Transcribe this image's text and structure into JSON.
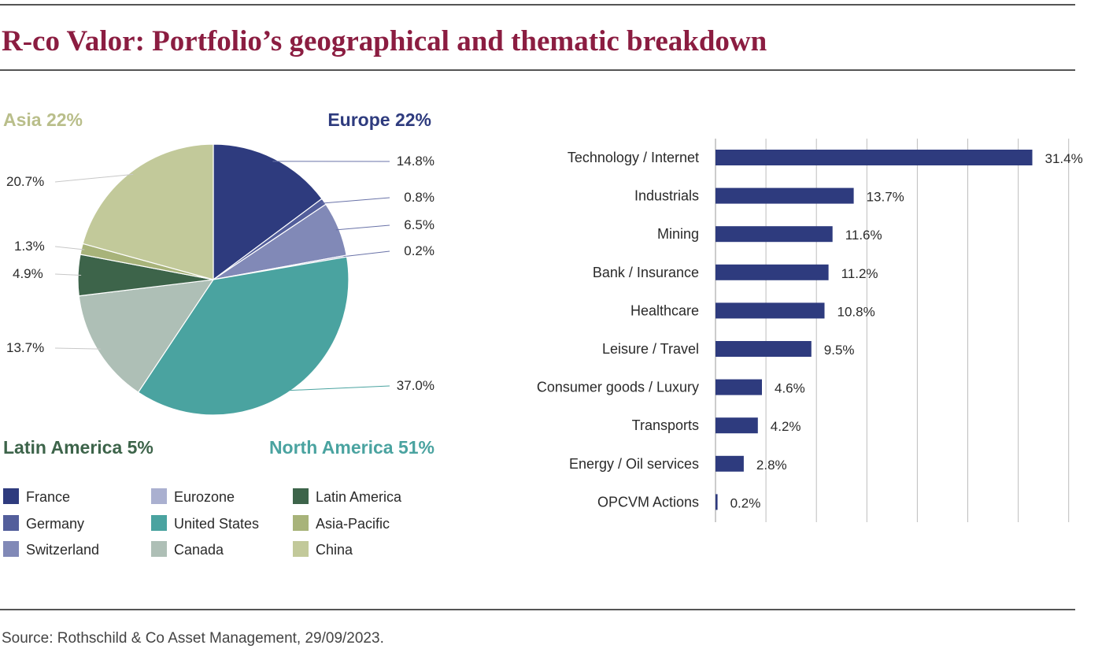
{
  "title": "R-co Valor: Portfolio’s geographical and thematic breakdown",
  "source": "Source: Rothschild & Co Asset Management, 29/09/2023.",
  "chart_data": [
    {
      "type": "pie",
      "regions": [
        {
          "label": "Asia 22%",
          "color": "#b9be8a"
        },
        {
          "label": "Europe 22%",
          "color": "#2e3b7e"
        },
        {
          "label": "Latin America 5%",
          "color": "#3d644a"
        },
        {
          "label": "North America 51%",
          "color": "#4aa3a0"
        }
      ],
      "slices": [
        {
          "name": "France",
          "value": 14.8,
          "label": "14.8%",
          "color": "#2e3b7e"
        },
        {
          "name": "Germany",
          "value": 0.8,
          "label": "0.8%",
          "color": "#535e9b"
        },
        {
          "name": "Switzerland",
          "value": 6.5,
          "label": "6.5%",
          "color": "#8189b7"
        },
        {
          "name": "Eurozone",
          "value": 0.2,
          "label": "0.2%",
          "color": "#aab0d0"
        },
        {
          "name": "United States",
          "value": 37.0,
          "label": "37.0%",
          "color": "#4aa3a0"
        },
        {
          "name": "Canada",
          "value": 13.7,
          "label": "13.7%",
          "color": "#aebfb6"
        },
        {
          "name": "Latin America",
          "value": 4.9,
          "label": "4.9%",
          "color": "#3d644a"
        },
        {
          "name": "Asia-Pacific",
          "value": 1.3,
          "label": "1.3%",
          "color": "#a8b37a"
        },
        {
          "name": "China",
          "value": 20.7,
          "label": "20.7%",
          "color": "#c2c99a"
        }
      ],
      "legend_order": [
        "France",
        "Germany",
        "Switzerland",
        "Eurozone",
        "United States",
        "Canada",
        "Latin America",
        "Asia-Pacific",
        "China"
      ]
    },
    {
      "type": "bar",
      "orientation": "horizontal",
      "categories": [
        "Technology / Internet",
        "Industrials",
        "Mining",
        "Bank / Insurance",
        "Healthcare",
        "Leisure / Travel",
        "Consumer goods / Luxury",
        "Transports",
        "Energy / Oil services",
        "OPCVM Actions"
      ],
      "values": [
        31.4,
        13.7,
        11.6,
        11.2,
        10.8,
        9.5,
        4.6,
        4.2,
        2.8,
        0.2
      ],
      "value_labels": [
        "31.4%",
        "13.7%",
        "11.6%",
        "11.2%",
        "10.8%",
        "9.5%",
        "4.6%",
        "4.2%",
        "2.8%",
        "0.2%"
      ],
      "xlim": [
        0,
        35
      ],
      "grid_step": 5,
      "grid": true,
      "bar_color": "#2e3b7e"
    }
  ]
}
